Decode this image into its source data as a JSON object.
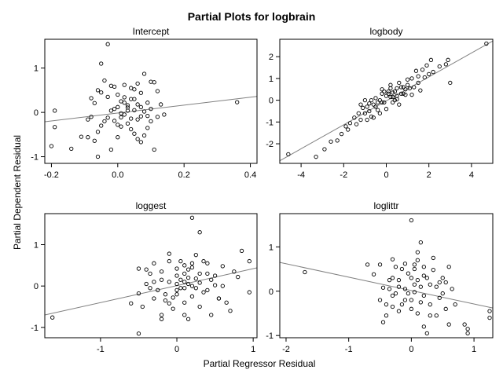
{
  "title": "Partial Plots for logbrain",
  "ylabel": "Partial Dependent Residual",
  "xlabel": "Partial Regressor Residual",
  "colors": {
    "point": "#000000",
    "line": "#808080",
    "frame": "#000000",
    "background": "#ffffff"
  },
  "chart_data": [
    {
      "type": "scatter",
      "title": "Intercept",
      "xlim": [
        -0.22,
        0.42
      ],
      "ylim": [
        -1.15,
        1.65
      ],
      "xticks": [
        -0.2,
        0.0,
        0.2,
        0.4
      ],
      "xtick_labels": [
        "-0.2",
        "0.0",
        "0.2",
        "0.4"
      ],
      "yticks": [
        -1,
        0,
        1
      ],
      "ytick_labels": [
        "-1",
        "0",
        "1"
      ],
      "fit_line": [
        [
          -0.22,
          -0.21
        ],
        [
          0.42,
          0.36
        ]
      ],
      "points": [
        [
          -0.03,
          1.54
        ],
        [
          -0.05,
          1.1
        ],
        [
          -0.2,
          -0.76
        ],
        [
          -0.19,
          -0.33
        ],
        [
          -0.19,
          0.04
        ],
        [
          -0.14,
          -0.82
        ],
        [
          -0.11,
          -0.55
        ],
        [
          -0.09,
          -0.56
        ],
        [
          -0.08,
          -0.1
        ],
        [
          -0.07,
          0.21
        ],
        [
          -0.06,
          0.5
        ],
        [
          -0.05,
          0.45
        ],
        [
          -0.04,
          0.72
        ],
        [
          -0.03,
          0.35
        ],
        [
          -0.02,
          0.6
        ],
        [
          -0.01,
          0.58
        ],
        [
          0.0,
          0.4
        ],
        [
          0.01,
          0.25
        ],
        [
          0.02,
          0.22
        ],
        [
          0.03,
          0.11
        ],
        [
          0.04,
          0.55
        ],
        [
          0.05,
          0.3
        ],
        [
          0.06,
          0.65
        ],
        [
          0.07,
          0.44
        ],
        [
          0.08,
          0.87
        ],
        [
          0.09,
          0.22
        ],
        [
          0.1,
          0.69
        ],
        [
          0.11,
          0.68
        ],
        [
          0.12,
          0.48
        ],
        [
          0.13,
          0.18
        ],
        [
          0.14,
          -0.05
        ],
        [
          -0.01,
          -0.19
        ],
        [
          0.0,
          -0.28
        ],
        [
          0.01,
          -0.11
        ],
        [
          0.02,
          -0.05
        ],
        [
          0.03,
          -0.25
        ],
        [
          0.04,
          -0.38
        ],
        [
          0.05,
          -0.48
        ],
        [
          0.06,
          -0.6
        ],
        [
          0.07,
          -0.67
        ],
        [
          0.08,
          -0.52
        ],
        [
          0.09,
          -0.35
        ],
        [
          0.1,
          -0.2
        ],
        [
          0.11,
          -0.84
        ],
        [
          0.03,
          0.04
        ],
        [
          0.04,
          -0.14
        ],
        [
          0.05,
          0.05
        ],
        [
          0.06,
          0.18
        ],
        [
          0.07,
          -0.09
        ],
        [
          0.02,
          0.62
        ],
        [
          -0.02,
          0.04
        ],
        [
          -0.03,
          -0.12
        ],
        [
          -0.04,
          -0.2
        ],
        [
          -0.05,
          -0.3
        ],
        [
          -0.06,
          -0.44
        ],
        [
          -0.07,
          -0.64
        ],
        [
          -0.06,
          -1.0
        ],
        [
          -0.02,
          -0.84
        ],
        [
          0.0,
          -0.56
        ],
        [
          -0.01,
          0.08
        ],
        [
          0.0,
          0.12
        ],
        [
          0.01,
          -0.02
        ],
        [
          0.02,
          0.34
        ],
        [
          0.03,
          0.16
        ],
        [
          0.05,
          0.52
        ],
        [
          0.08,
          0.02
        ],
        [
          0.09,
          -0.08
        ],
        [
          0.1,
          0.08
        ],
        [
          0.12,
          -0.1
        ],
        [
          -0.08,
          0.32
        ],
        [
          -0.09,
          -0.16
        ],
        [
          0.01,
          -0.32
        ],
        [
          0.04,
          0.3
        ],
        [
          0.06,
          -0.16
        ],
        [
          0.07,
          0.12
        ],
        [
          0.36,
          0.23
        ]
      ]
    },
    {
      "type": "scatter",
      "title": "logbody",
      "xlim": [
        -5.0,
        5.0
      ],
      "ylim": [
        -2.9,
        2.8
      ],
      "xticks": [
        -4,
        -2,
        0,
        2,
        4
      ],
      "xtick_labels": [
        "-4",
        "-2",
        "0",
        "2",
        "4"
      ],
      "yticks": [
        -2,
        -1,
        0,
        1,
        2
      ],
      "ytick_labels": [
        "-2",
        "-1",
        "0",
        "1",
        "2"
      ],
      "fit_line": [
        [
          -5.0,
          -2.78
        ],
        [
          5.0,
          2.72
        ]
      ],
      "points": [
        [
          -4.6,
          -2.48
        ],
        [
          -3.3,
          -2.6
        ],
        [
          -2.9,
          -2.25
        ],
        [
          -2.6,
          -1.9
        ],
        [
          -2.3,
          -1.85
        ],
        [
          -2.1,
          -1.55
        ],
        [
          -1.9,
          -1.2
        ],
        [
          -1.8,
          -1.35
        ],
        [
          -1.7,
          -1.05
        ],
        [
          -1.5,
          -0.8
        ],
        [
          -1.4,
          -1.1
        ],
        [
          -1.3,
          -0.6
        ],
        [
          -1.2,
          -0.9
        ],
        [
          -1.0,
          -0.6
        ],
        [
          -0.9,
          -0.3
        ],
        [
          -0.8,
          -0.5
        ],
        [
          -0.7,
          -0.75
        ],
        [
          -0.6,
          -0.2
        ],
        [
          -0.5,
          0.1
        ],
        [
          -0.4,
          -0.45
        ],
        [
          -0.3,
          0.0
        ],
        [
          -0.2,
          0.5
        ],
        [
          -0.1,
          -0.1
        ],
        [
          0.0,
          0.2
        ],
        [
          0.1,
          0.3
        ],
        [
          0.2,
          0.55
        ],
        [
          0.3,
          0.15
        ],
        [
          0.4,
          0.4
        ],
        [
          0.5,
          0.05
        ],
        [
          0.6,
          0.8
        ],
        [
          0.7,
          0.3
        ],
        [
          0.8,
          0.6
        ],
        [
          0.9,
          0.25
        ],
        [
          1.0,
          0.7
        ],
        [
          1.1,
          0.55
        ],
        [
          1.2,
          1.0
        ],
        [
          1.3,
          0.6
        ],
        [
          1.4,
          1.35
        ],
        [
          1.5,
          0.8
        ],
        [
          1.6,
          0.45
        ],
        [
          1.8,
          1.05
        ],
        [
          1.9,
          1.6
        ],
        [
          2.0,
          1.2
        ],
        [
          2.1,
          1.85
        ],
        [
          2.5,
          1.55
        ],
        [
          2.8,
          1.65
        ],
        [
          2.9,
          1.85
        ],
        [
          3.0,
          0.8
        ],
        [
          4.7,
          2.6
        ],
        [
          -0.4,
          -0.1
        ],
        [
          0.1,
          0.4
        ],
        [
          0.2,
          0.15
        ],
        [
          -0.1,
          0.4
        ],
        [
          0.3,
          0.35
        ],
        [
          0.5,
          0.55
        ],
        [
          -0.2,
          0.3
        ],
        [
          0.4,
          0.0
        ],
        [
          0.6,
          -0.2
        ],
        [
          0.0,
          -0.4
        ],
        [
          -0.3,
          -0.6
        ],
        [
          -0.6,
          -0.8
        ],
        [
          -1.1,
          -0.35
        ],
        [
          1.7,
          1.4
        ],
        [
          1.2,
          0.25
        ],
        [
          0.9,
          0.5
        ],
        [
          0.7,
          0.6
        ],
        [
          0.8,
          0.3
        ],
        [
          1.0,
          0.95
        ],
        [
          -0.5,
          -0.3
        ],
        [
          -0.2,
          -0.1
        ],
        [
          0.2,
          0.7
        ],
        [
          -0.9,
          -0.9
        ],
        [
          -1.2,
          -0.2
        ],
        [
          -1.0,
          0.0
        ],
        [
          0.3,
          -0.1
        ],
        [
          0.5,
          0.2
        ],
        [
          -0.7,
          0.0
        ],
        [
          2.2,
          1.3
        ],
        [
          1.5,
          1.1
        ],
        [
          -0.8,
          -0.15
        ]
      ]
    },
    {
      "type": "scatter",
      "title": "loggest",
      "xlim": [
        -1.73,
        1.05
      ],
      "ylim": [
        -1.25,
        1.75
      ],
      "xticks": [
        -1,
        0,
        1
      ],
      "xtick_labels": [
        "-1",
        "0",
        "1"
      ],
      "yticks": [
        -1,
        0,
        1
      ],
      "ytick_labels": [
        "-1",
        "0",
        "1"
      ],
      "fit_line": [
        [
          -1.73,
          -0.7
        ],
        [
          1.05,
          0.44
        ]
      ],
      "points": [
        [
          -1.63,
          -0.76
        ],
        [
          -0.6,
          -0.42
        ],
        [
          -0.5,
          -0.18
        ],
        [
          -0.5,
          -1.15
        ],
        [
          -0.45,
          -0.5
        ],
        [
          -0.4,
          0.05
        ],
        [
          -0.35,
          0.3
        ],
        [
          -0.3,
          -0.3
        ],
        [
          -0.3,
          0.55
        ],
        [
          -0.2,
          -0.7
        ],
        [
          -0.2,
          0.15
        ],
        [
          -0.15,
          -0.35
        ],
        [
          -0.1,
          0.1
        ],
        [
          -0.1,
          0.78
        ],
        [
          -0.05,
          -0.55
        ],
        [
          0.0,
          0.25
        ],
        [
          0.0,
          -0.2
        ],
        [
          0.05,
          0.6
        ],
        [
          0.05,
          -0.05
        ],
        [
          0.1,
          0.3
        ],
        [
          0.1,
          -0.4
        ],
        [
          0.15,
          0.05
        ],
        [
          0.15,
          0.4
        ],
        [
          0.2,
          0.45
        ],
        [
          0.2,
          -0.25
        ],
        [
          0.25,
          0.18
        ],
        [
          0.25,
          0.75
        ],
        [
          0.3,
          0.08
        ],
        [
          0.3,
          -0.5
        ],
        [
          0.35,
          0.6
        ],
        [
          0.4,
          -0.1
        ],
        [
          0.4,
          0.3
        ],
        [
          0.45,
          0.15
        ],
        [
          0.5,
          0.02
        ],
        [
          0.55,
          -0.3
        ],
        [
          0.6,
          0.48
        ],
        [
          0.65,
          -0.4
        ],
        [
          0.8,
          0.22
        ],
        [
          0.85,
          0.85
        ],
        [
          0.95,
          0.6
        ],
        [
          0.95,
          -0.15
        ],
        [
          0.2,
          1.65
        ],
        [
          0.3,
          1.3
        ],
        [
          0.2,
          0.55
        ],
        [
          0.1,
          0.1
        ],
        [
          0.1,
          0.5
        ],
        [
          0.0,
          -0.1
        ],
        [
          -0.1,
          0.6
        ],
        [
          -0.15,
          -0.2
        ],
        [
          0.0,
          0.42
        ],
        [
          0.1,
          -0.05
        ],
        [
          -0.05,
          -0.28
        ],
        [
          -0.3,
          0.1
        ],
        [
          -0.4,
          0.4
        ],
        [
          0.5,
          0.25
        ],
        [
          0.3,
          0.3
        ],
        [
          0.15,
          -0.8
        ],
        [
          0.35,
          -0.15
        ],
        [
          0.6,
          0.0
        ],
        [
          0.7,
          -0.6
        ],
        [
          0.75,
          0.35
        ],
        [
          -0.25,
          -0.1
        ],
        [
          -0.35,
          -0.05
        ],
        [
          -0.2,
          0.35
        ],
        [
          0.05,
          0.15
        ],
        [
          0.15,
          0.2
        ],
        [
          0.25,
          -0.05
        ],
        [
          0.4,
          0.55
        ],
        [
          0.55,
          -0.3
        ],
        [
          -0.1,
          -0.42
        ],
        [
          0.0,
          0.05
        ],
        [
          0.2,
          0.0
        ],
        [
          -0.5,
          0.42
        ],
        [
          0.45,
          -0.7
        ],
        [
          -0.2,
          -0.8
        ],
        [
          0.1,
          -0.7
        ]
      ]
    },
    {
      "type": "scatter",
      "title": "loglittr",
      "xlim": [
        -2.1,
        1.3
      ],
      "ylim": [
        -1.05,
        1.75
      ],
      "xticks": [
        -2,
        -1,
        0,
        1
      ],
      "xtick_labels": [
        "-2",
        "-1",
        "0",
        "1"
      ],
      "yticks": [
        -1,
        0,
        1
      ],
      "ytick_labels": [
        "-1",
        "0",
        "1"
      ],
      "fit_line": [
        [
          -2.1,
          0.65
        ],
        [
          1.3,
          -0.38
        ]
      ],
      "points": [
        [
          -1.7,
          0.43
        ],
        [
          -0.7,
          0.6
        ],
        [
          -0.6,
          0.38
        ],
        [
          -0.5,
          -0.2
        ],
        [
          -0.45,
          0.08
        ],
        [
          -0.4,
          -0.55
        ],
        [
          -0.35,
          0.25
        ],
        [
          -0.3,
          0.72
        ],
        [
          -0.3,
          -0.1
        ],
        [
          -0.25,
          0.55
        ],
        [
          -0.2,
          0.25
        ],
        [
          -0.15,
          -0.3
        ],
        [
          -0.1,
          0.62
        ],
        [
          -0.1,
          0.05
        ],
        [
          -0.05,
          0.4
        ],
        [
          0.0,
          -0.2
        ],
        [
          0.0,
          1.6
        ],
        [
          0.05,
          0.5
        ],
        [
          0.05,
          -0.02
        ],
        [
          0.1,
          0.25
        ],
        [
          0.1,
          -0.5
        ],
        [
          0.15,
          0.1
        ],
        [
          0.15,
          1.1
        ],
        [
          0.2,
          0.55
        ],
        [
          0.2,
          -0.1
        ],
        [
          0.25,
          0.3
        ],
        [
          0.3,
          -0.3
        ],
        [
          0.35,
          0.48
        ],
        [
          0.4,
          0.1
        ],
        [
          0.45,
          0.2
        ],
        [
          0.5,
          -0.05
        ],
        [
          0.55,
          -0.4
        ],
        [
          0.6,
          -0.75
        ],
        [
          0.65,
          0.05
        ],
        [
          0.7,
          -0.3
        ],
        [
          0.85,
          -0.75
        ],
        [
          0.9,
          -0.85
        ],
        [
          0.9,
          -0.95
        ],
        [
          1.25,
          -0.45
        ],
        [
          1.25,
          -0.6
        ],
        [
          0.2,
          -0.8
        ],
        [
          0.25,
          -0.95
        ],
        [
          0.1,
          0.88
        ],
        [
          -0.2,
          0.1
        ],
        [
          -0.3,
          -0.35
        ],
        [
          0.0,
          0.3
        ],
        [
          0.05,
          0.6
        ],
        [
          -0.05,
          -0.05
        ],
        [
          0.3,
          0.15
        ],
        [
          -0.1,
          -0.2
        ],
        [
          -0.4,
          -0.3
        ],
        [
          0.4,
          -0.55
        ],
        [
          0.2,
          0.35
        ],
        [
          -0.15,
          0.5
        ],
        [
          -0.25,
          -0.05
        ],
        [
          0.35,
          0.75
        ],
        [
          0.5,
          0.3
        ],
        [
          0.6,
          0.55
        ],
        [
          -0.45,
          -0.7
        ],
        [
          0.15,
          -0.25
        ],
        [
          0.05,
          0.15
        ],
        [
          -0.3,
          0.3
        ],
        [
          0.45,
          -0.15
        ],
        [
          0.1,
          0.7
        ],
        [
          -0.5,
          0.6
        ],
        [
          0.3,
          -0.55
        ],
        [
          0.0,
          -0.4
        ],
        [
          -0.2,
          -0.45
        ],
        [
          0.55,
          0.2
        ],
        [
          -0.35,
          0.05
        ]
      ]
    }
  ]
}
